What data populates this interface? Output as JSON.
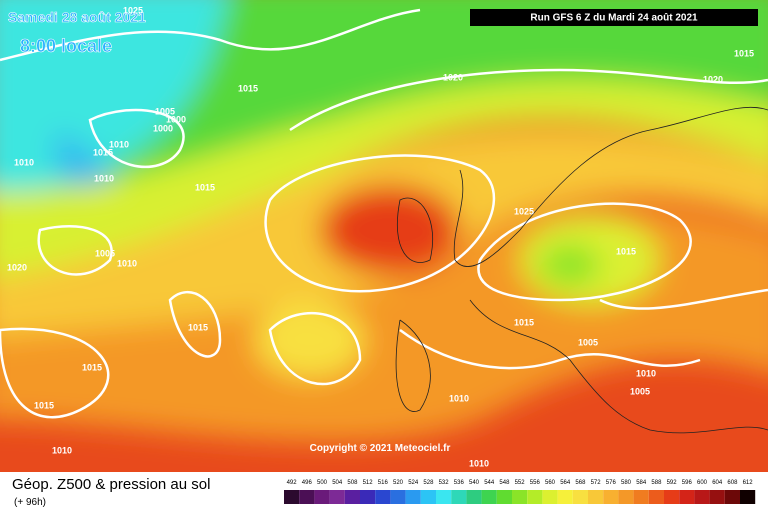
{
  "header": {
    "date": "Samedi 28 août 2021",
    "time": "8:00 locale",
    "run": "Run GFS 6 Z du Mardi 24 août 2021"
  },
  "copyright": "Copyright © 2021 Meteociel.fr",
  "footer": {
    "title": "Géop. Z500 & pression au sol",
    "lead": "(+ 96h)"
  },
  "isobar_labels": [
    1025,
    1015,
    1005,
    1000,
    1000,
    1010,
    1015,
    1010,
    1010,
    1015,
    1020,
    1020,
    1015,
    1025,
    1015,
    1005,
    1010,
    1020,
    1015,
    1015,
    1005,
    1015,
    1010,
    1005,
    1010,
    1015,
    1010,
    1010
  ],
  "colorbar": {
    "levels": [
      492,
      496,
      500,
      504,
      508,
      512,
      516,
      520,
      524,
      528,
      532,
      536,
      540,
      544,
      548,
      552,
      556,
      560,
      564,
      568,
      572,
      576,
      580,
      584,
      588,
      592,
      596,
      600,
      604,
      608,
      612
    ],
    "colors": [
      "#2b0a2e",
      "#4b0f55",
      "#6a1a7a",
      "#7d2a96",
      "#5a1fa0",
      "#3a2ab8",
      "#2a47d0",
      "#2a6fe0",
      "#2a9af0",
      "#2cc4f5",
      "#3ae6f0",
      "#2ed8b8",
      "#2ecc80",
      "#3ed450",
      "#60dc30",
      "#8ae428",
      "#b4ec28",
      "#dcf030",
      "#f6f03a",
      "#f8e040",
      "#f8c838",
      "#f8b030",
      "#f49828",
      "#f07c20",
      "#ec5c1c",
      "#e63c18",
      "#d42418",
      "#b81818",
      "#961010",
      "#6c0808",
      "#100000"
    ]
  }
}
